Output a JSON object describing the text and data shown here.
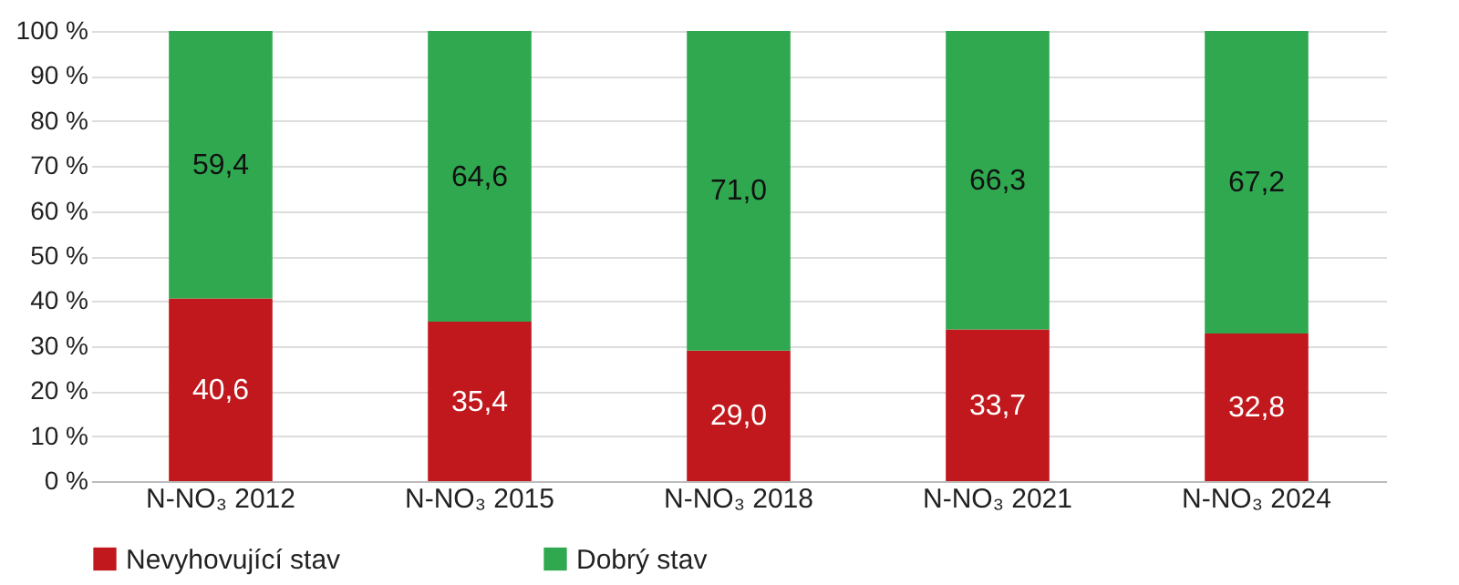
{
  "chart_data": {
    "type": "bar",
    "stacked": true,
    "categories": [
      "N-NO₃ 2012",
      "N-NO₃ 2015",
      "N-NO₃ 2018",
      "N-NO₃ 2021",
      "N-NO₃ 2024"
    ],
    "series": [
      {
        "name": "Nevyhovující stav",
        "color": "#c0181c",
        "values": [
          40.6,
          35.4,
          29.0,
          33.7,
          32.8
        ],
        "value_labels": [
          "40,6",
          "35,4",
          "29,0",
          "33,7",
          "32,8"
        ]
      },
      {
        "name": "Dobrý stav",
        "color": "#2fa84f",
        "values": [
          59.4,
          64.6,
          71.0,
          66.3,
          67.2
        ],
        "value_labels": [
          "59,4",
          "64,6",
          "71,0",
          "66,3",
          "67,2"
        ]
      }
    ],
    "ylim": [
      0,
      100
    ],
    "yticks": [
      {
        "value": 0,
        "label": "0 %"
      },
      {
        "value": 10,
        "label": "10 %"
      },
      {
        "value": 20,
        "label": "20 %"
      },
      {
        "value": 30,
        "label": "30 %"
      },
      {
        "value": 40,
        "label": "40 %"
      },
      {
        "value": 50,
        "label": "50 %"
      },
      {
        "value": 60,
        "label": "60 %"
      },
      {
        "value": 70,
        "label": "70 %"
      },
      {
        "value": 80,
        "label": "80 %"
      },
      {
        "value": 90,
        "label": "90 %"
      },
      {
        "value": 100,
        "label": "100 %"
      }
    ],
    "grid": "y",
    "legend": "bottom"
  }
}
